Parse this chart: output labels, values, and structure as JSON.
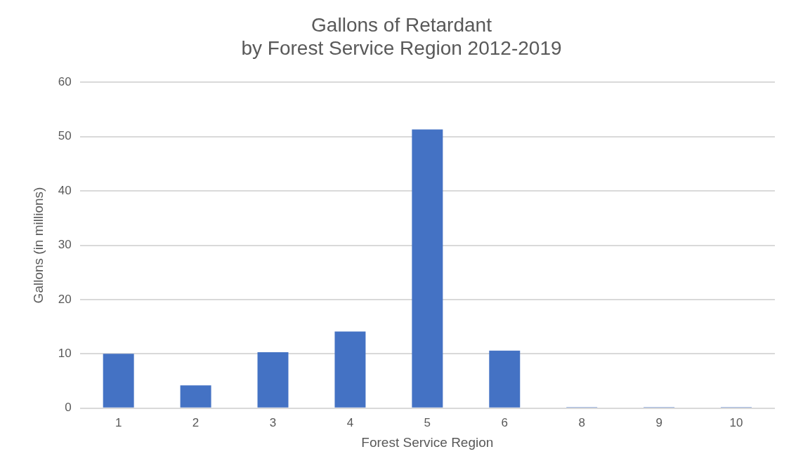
{
  "chart_data": {
    "type": "bar",
    "title": "Gallons of Retardant\nby Forest Service Region 2012-2019",
    "xlabel": "Forest Service Region",
    "ylabel": "Gallons (in millions)",
    "categories": [
      "1",
      "2",
      "3",
      "4",
      "5",
      "6",
      "8",
      "9",
      "10"
    ],
    "values": [
      10.0,
      4.2,
      10.3,
      14.1,
      51.3,
      10.6,
      0.2,
      0.2,
      0.2
    ],
    "color": "#4472c4",
    "ylim": [
      0,
      60
    ],
    "yticks": [
      0,
      10,
      20,
      30,
      40,
      50,
      60
    ],
    "grid": "y",
    "legend": false
  }
}
